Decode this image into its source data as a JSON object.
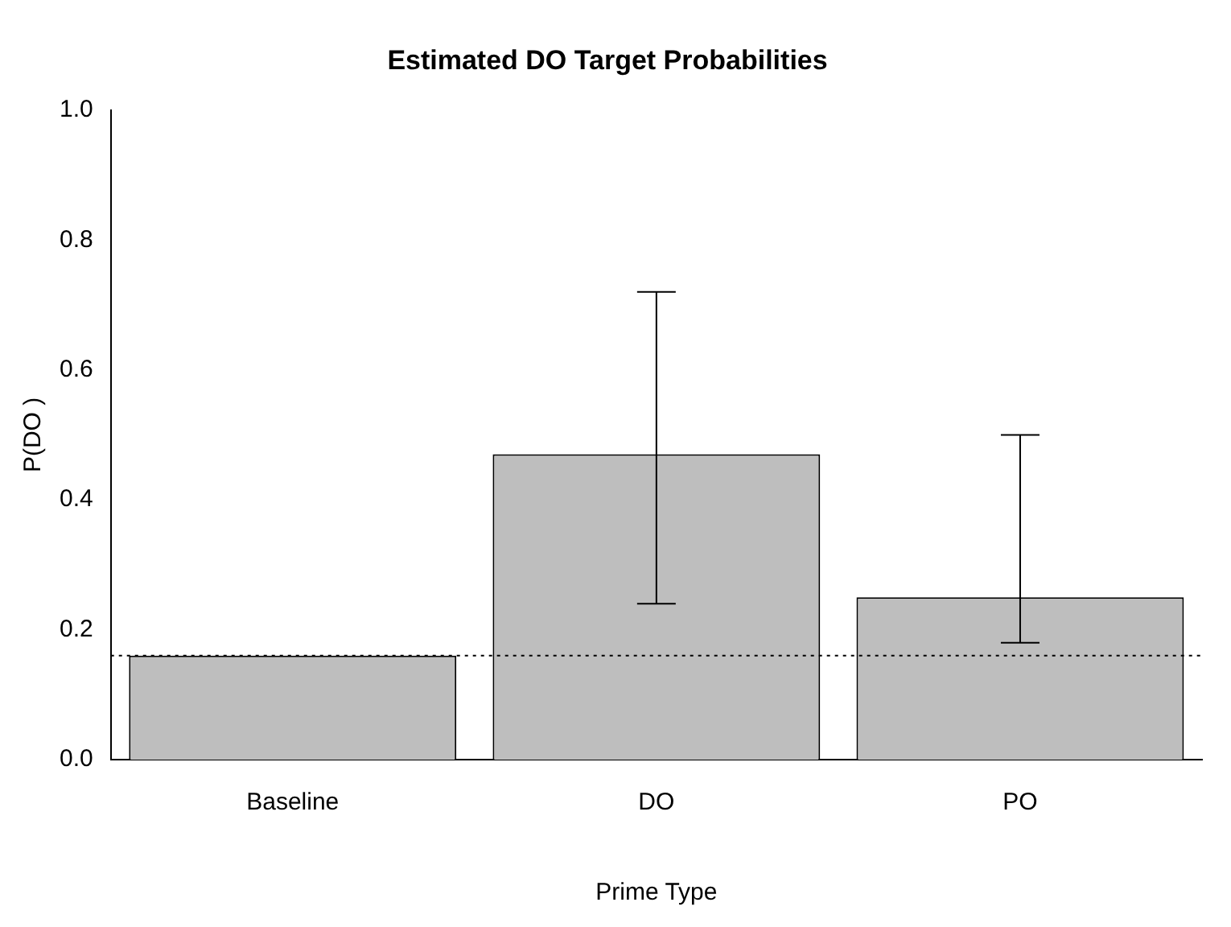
{
  "chart_data": {
    "type": "bar",
    "title": "Estimated DO Target Probabilities",
    "xlabel": "Prime Type",
    "ylabel": "P(DO )",
    "categories": [
      "Baseline",
      "DO",
      "PO"
    ],
    "values": [
      0.16,
      0.47,
      0.25
    ],
    "errors": [
      null,
      [
        0.24,
        0.72
      ],
      [
        0.18,
        0.5
      ]
    ],
    "color": "#bebebe",
    "ylim": [
      0,
      1
    ],
    "yticks": [
      {
        "value": 0,
        "label": "0.0"
      },
      {
        "value": 0.2,
        "label": "0.2"
      },
      {
        "value": 0.4,
        "label": "0.4"
      },
      {
        "value": 0.6,
        "label": "0.6"
      },
      {
        "value": 0.8,
        "label": "0.8"
      },
      {
        "value": 1,
        "label": "1.0"
      }
    ],
    "ref_lines": [
      {
        "axis": "y",
        "value": 0.16,
        "line_style": "dotted"
      }
    ],
    "grid": false,
    "legend": false
  }
}
